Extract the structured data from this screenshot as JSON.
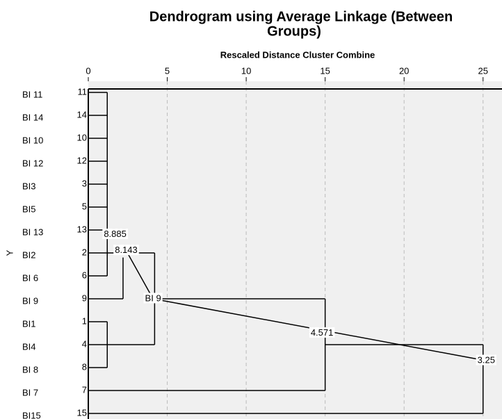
{
  "chart_data": {
    "type": "dendrogram",
    "title_lines": [
      "Dendrogram using Average Linkage (Between",
      "Groups)"
    ],
    "x_label": "Rescaled Distance Cluster Combine",
    "y_label": "Y",
    "xlim": [
      0,
      26.2
    ],
    "xticks": [
      0,
      5,
      10,
      15,
      20,
      25
    ],
    "grid": true,
    "leaf_labels": [
      "BI 11",
      "BI 14",
      "BI 10",
      "BI 12",
      "BI3",
      "BI5",
      "BI 13",
      "BI2",
      "BI  6",
      "BI  9",
      "BI1",
      "BI4",
      "BI  8",
      "BI  7",
      "BI15"
    ],
    "leaf_numbers": [
      11,
      14,
      10,
      12,
      3,
      5,
      13,
      2,
      6,
      9,
      1,
      4,
      8,
      7,
      15
    ],
    "segments": [
      {
        "x": [
          0,
          1.2
        ],
        "row": [
          0,
          0
        ]
      },
      {
        "x": [
          0,
          1.2
        ],
        "row": [
          1,
          1
        ]
      },
      {
        "x": [
          0,
          1.2
        ],
        "row": [
          2,
          2
        ]
      },
      {
        "x": [
          0,
          1.2
        ],
        "row": [
          3,
          3
        ]
      },
      {
        "x": [
          0,
          1.2
        ],
        "row": [
          4,
          4
        ]
      },
      {
        "x": [
          0,
          1.2
        ],
        "row": [
          5,
          5
        ]
      },
      {
        "x": [
          0,
          1.2
        ],
        "row": [
          6,
          6
        ]
      },
      {
        "x": [
          0,
          4.2
        ],
        "row": [
          7,
          7
        ]
      },
      {
        "x": [
          0,
          1.2
        ],
        "row": [
          8,
          8
        ]
      },
      {
        "x": [
          0,
          2.2
        ],
        "row": [
          9,
          9
        ]
      },
      {
        "x": [
          0,
          1.2
        ],
        "row": [
          10,
          10
        ]
      },
      {
        "x": [
          0,
          4.2
        ],
        "row": [
          11,
          11
        ]
      },
      {
        "x": [
          0,
          1.2
        ],
        "row": [
          12,
          12
        ]
      },
      {
        "x": [
          0,
          15
        ],
        "row": [
          13,
          13
        ]
      },
      {
        "x": [
          0,
          25
        ],
        "row": [
          14,
          14
        ]
      },
      {
        "x": [
          1.2,
          1.2
        ],
        "row": [
          0,
          8
        ]
      },
      {
        "x": [
          2.2,
          2.2
        ],
        "row": [
          7.2,
          9
        ]
      },
      {
        "x": [
          1.2,
          1.2
        ],
        "row": [
          10,
          12
        ]
      },
      {
        "x": [
          4.2,
          4.2
        ],
        "row": [
          7,
          11
        ]
      },
      {
        "x": [
          4.5,
          15
        ],
        "row": [
          9,
          9
        ]
      },
      {
        "x": [
          15,
          15
        ],
        "row": [
          9,
          13
        ]
      },
      {
        "x": [
          15,
          25
        ],
        "row": [
          11,
          11
        ]
      },
      {
        "x": [
          25,
          25
        ],
        "row": [
          11,
          14
        ]
      }
    ],
    "annotations": [
      {
        "text": "8.885",
        "x": 1.7,
        "row": 6.2
      },
      {
        "text": "8.143",
        "x": 2.4,
        "row": 6.9
      },
      {
        "text": "BI  9",
        "x": 4.1,
        "row": 9
      },
      {
        "text": "4.571",
        "x": 14.8,
        "row": 10.5
      },
      {
        "text": "3.25",
        "x": 25.2,
        "row": 11.7
      }
    ]
  }
}
